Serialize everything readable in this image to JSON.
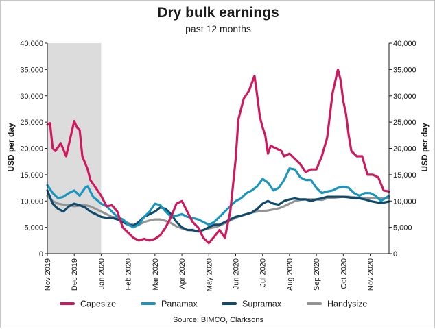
{
  "chart_data": {
    "type": "line",
    "title": "Dry bulk earnings",
    "subtitle": "past 12 months",
    "ylabel_left": "USD per day",
    "ylabel_right": "USD per day",
    "xlabel": "",
    "ylim": [
      0,
      40000
    ],
    "y_ticks": [
      "0",
      "5,000",
      "10,000",
      "15,000",
      "20,000",
      "25,000",
      "30,000",
      "35,000",
      "40,000"
    ],
    "x_ticks": [
      "Nov 2019",
      "Dec 2019",
      "Jan 2020",
      "Feb 2020",
      "Mar 2020",
      "Apr 2020",
      "May 2020",
      "Jun 2020",
      "Jul 2020",
      "Aug 2020",
      "Sep 2020",
      "Oct 2020",
      "Nov 2020"
    ],
    "x_range_months": [
      0,
      12.7
    ],
    "shaded_region": {
      "from_month": 0,
      "to_month": 2,
      "color": "#dcdcdc"
    },
    "grid": false,
    "legend_position": "bottom",
    "source": "Source: BIMCO, Clarksons",
    "series": [
      {
        "name": "Capesize",
        "color": "#d0185e",
        "x": [
          0.0,
          0.1,
          0.2,
          0.3,
          0.5,
          0.7,
          0.9,
          1.0,
          1.1,
          1.2,
          1.3,
          1.5,
          1.6,
          1.8,
          2.0,
          2.2,
          2.4,
          2.6,
          2.8,
          3.0,
          3.2,
          3.4,
          3.6,
          3.8,
          4.0,
          4.2,
          4.4,
          4.6,
          4.8,
          5.0,
          5.2,
          5.4,
          5.6,
          5.8,
          6.0,
          6.2,
          6.4,
          6.6,
          6.8,
          6.9,
          7.0,
          7.1,
          7.3,
          7.5,
          7.7,
          7.8,
          7.9,
          8.0,
          8.1,
          8.2,
          8.3,
          8.5,
          8.7,
          8.8,
          9.0,
          9.2,
          9.4,
          9.6,
          9.8,
          10.0,
          10.2,
          10.4,
          10.6,
          10.8,
          10.9,
          11.0,
          11.1,
          11.2,
          11.3,
          11.5,
          11.7,
          11.9,
          12.1,
          12.3,
          12.5,
          12.7
        ],
        "values": [
          24500,
          24800,
          20000,
          19500,
          21000,
          18500,
          23000,
          25200,
          24000,
          23500,
          18500,
          16000,
          14000,
          12500,
          11000,
          9000,
          9200,
          8000,
          5000,
          4000,
          3000,
          2500,
          2800,
          2500,
          2800,
          3500,
          5000,
          7000,
          9500,
          10000,
          8000,
          6000,
          5000,
          3000,
          2000,
          3200,
          4500,
          3000,
          8000,
          13000,
          18000,
          25500,
          29500,
          31000,
          33800,
          30000,
          26000,
          24000,
          22500,
          19000,
          20500,
          20000,
          19500,
          18500,
          19000,
          18000,
          17000,
          15500,
          16000,
          16000,
          18500,
          22000,
          30500,
          35000,
          33000,
          29000,
          26500,
          22500,
          19500,
          18500,
          18500,
          15000,
          15000,
          14500,
          12000,
          11800
        ]
      },
      {
        "name": "Panamax",
        "color": "#1a96be",
        "x": [
          0.0,
          0.2,
          0.4,
          0.6,
          0.8,
          1.0,
          1.2,
          1.4,
          1.5,
          1.7,
          2.0,
          2.2,
          2.4,
          2.6,
          2.8,
          3.0,
          3.2,
          3.4,
          3.6,
          3.8,
          4.0,
          4.2,
          4.4,
          4.6,
          4.8,
          5.0,
          5.2,
          5.4,
          5.6,
          5.8,
          6.0,
          6.2,
          6.4,
          6.6,
          6.8,
          7.0,
          7.2,
          7.4,
          7.6,
          7.8,
          8.0,
          8.2,
          8.4,
          8.6,
          8.8,
          9.0,
          9.2,
          9.4,
          9.6,
          9.8,
          10.0,
          10.2,
          10.4,
          10.6,
          10.8,
          11.0,
          11.2,
          11.4,
          11.6,
          11.8,
          12.0,
          12.2,
          12.4,
          12.7
        ],
        "values": [
          13000,
          11500,
          10500,
          10800,
          11500,
          12000,
          11000,
          12500,
          12800,
          10800,
          9500,
          9000,
          8000,
          7000,
          6500,
          5500,
          5000,
          5500,
          7000,
          8000,
          9500,
          9200,
          8000,
          7000,
          7200,
          7500,
          7000,
          6800,
          6500,
          6000,
          5500,
          6000,
          7000,
          8000,
          9000,
          10000,
          10500,
          11500,
          12000,
          12800,
          14200,
          13500,
          12000,
          12500,
          14000,
          16200,
          16000,
          14500,
          14000,
          14000,
          12500,
          11500,
          11800,
          12000,
          12500,
          12700,
          12500,
          11500,
          11000,
          11500,
          11500,
          11000,
          10000,
          11000
        ]
      },
      {
        "name": "Supramax",
        "color": "#0d4a6b",
        "x": [
          0.0,
          0.2,
          0.4,
          0.6,
          0.8,
          1.0,
          1.2,
          1.4,
          1.6,
          1.8,
          2.0,
          2.2,
          2.4,
          2.6,
          2.8,
          3.0,
          3.2,
          3.4,
          3.6,
          3.8,
          4.0,
          4.2,
          4.4,
          4.6,
          4.8,
          5.0,
          5.2,
          5.4,
          5.6,
          5.8,
          6.0,
          6.2,
          6.4,
          6.6,
          6.8,
          7.0,
          7.2,
          7.4,
          7.6,
          7.8,
          8.0,
          8.2,
          8.4,
          8.6,
          8.8,
          9.0,
          9.2,
          9.4,
          9.6,
          9.8,
          10.0,
          10.2,
          10.4,
          10.6,
          10.8,
          11.0,
          11.2,
          11.4,
          11.6,
          11.8,
          12.0,
          12.2,
          12.4,
          12.7
        ],
        "values": [
          12000,
          9500,
          8500,
          8000,
          9000,
          9500,
          9200,
          8800,
          8000,
          7500,
          7000,
          6800,
          6800,
          6500,
          6000,
          5500,
          5300,
          6000,
          7000,
          7500,
          8000,
          8800,
          8500,
          7500,
          6000,
          5000,
          4500,
          4500,
          4200,
          4500,
          5000,
          5500,
          5500,
          6000,
          6500,
          7000,
          7200,
          7500,
          7800,
          8500,
          9500,
          10000,
          9500,
          9300,
          10000,
          10300,
          10500,
          10300,
          10300,
          10000,
          10300,
          10500,
          10800,
          10800,
          10800,
          10800,
          10700,
          10500,
          10500,
          10300,
          10000,
          9800,
          9600,
          9900
        ]
      },
      {
        "name": "Handysize",
        "color": "#949494",
        "x": [
          0.0,
          0.2,
          0.4,
          0.6,
          0.8,
          1.0,
          1.2,
          1.4,
          1.6,
          1.8,
          2.0,
          2.2,
          2.4,
          2.6,
          2.8,
          3.0,
          3.2,
          3.4,
          3.6,
          3.8,
          4.0,
          4.2,
          4.4,
          4.6,
          4.8,
          5.0,
          5.2,
          5.4,
          5.6,
          5.8,
          6.0,
          6.2,
          6.4,
          6.6,
          6.8,
          7.0,
          7.2,
          7.4,
          7.6,
          7.8,
          8.0,
          8.2,
          8.4,
          8.6,
          8.8,
          9.0,
          9.2,
          9.4,
          9.6,
          9.8,
          10.0,
          10.2,
          10.4,
          10.6,
          10.8,
          11.0,
          11.2,
          11.4,
          11.6,
          11.8,
          12.0,
          12.2,
          12.4,
          12.7
        ],
        "values": [
          11000,
          10000,
          9500,
          9300,
          9200,
          9000,
          9100,
          9200,
          9000,
          8500,
          8000,
          7500,
          7000,
          6800,
          6500,
          5800,
          5500,
          5500,
          6000,
          6300,
          6500,
          6500,
          6200,
          5800,
          5200,
          4800,
          4500,
          4400,
          4300,
          4500,
          4800,
          5000,
          5300,
          5800,
          6300,
          6800,
          7200,
          7500,
          7800,
          8000,
          8100,
          8200,
          8400,
          8600,
          9000,
          9500,
          10000,
          10200,
          10300,
          10300,
          10300,
          10200,
          10500,
          10600,
          10700,
          10800,
          10800,
          10700,
          10600,
          10600,
          10500,
          10500,
          10500,
          10500
        ]
      }
    ]
  }
}
